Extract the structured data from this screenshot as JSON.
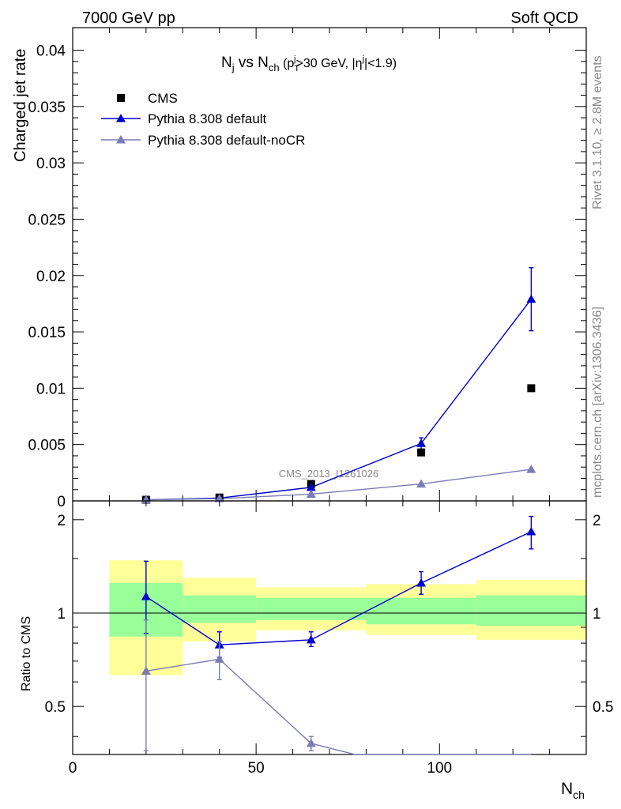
{
  "header": {
    "left": "7000 GeV pp",
    "right": "Soft QCD"
  },
  "side_labels": {
    "rivet": "Rivet 3.1.10, ≥ 2.8M events",
    "mcplots": "mcplots.cern.ch [arXiv:1306.3436]"
  },
  "colors": {
    "cms": "#000000",
    "default": "#0000cc",
    "nocr": "#7b7bb5",
    "band_inner": "#99ff99",
    "band_outer": "#ffff99"
  },
  "chart_data": [
    {
      "type": "scatter",
      "title": {
        "main_a": "N",
        "main_sub_a": "j",
        "vs": " vs N",
        "main_sub_b": "ch",
        "cut_a": " (p",
        "cut_sub": "T",
        "cut_sup": "j",
        "cut_b": ">30 GeV, |η",
        "cut_sup2": "j",
        "cut_c": "|<1.9)"
      },
      "ylabel": "Charged jet rate",
      "watermark": "CMS_2013_I1261026",
      "xlim": [
        0,
        140
      ],
      "ylim": [
        0,
        0.042
      ],
      "yticks": [
        0,
        0.005,
        0.01,
        0.015,
        0.02,
        0.025,
        0.03,
        0.035,
        0.04
      ],
      "ytick_labels": [
        "0",
        "0.005",
        "0.01",
        "0.015",
        "0.02",
        "0.025",
        "0.03",
        "0.035",
        "0.04"
      ],
      "legend": {
        "position": "top-left"
      },
      "series": [
        {
          "name": "CMS",
          "marker": "square",
          "x": [
            20,
            40,
            65,
            95,
            125
          ],
          "y": [
            0.0001,
            0.0003,
            0.0015,
            0.0043,
            0.01
          ]
        },
        {
          "name": "Pythia 8.308 default",
          "marker": "triangle",
          "x": [
            20,
            40,
            65,
            95,
            125
          ],
          "y": [
            0.0001,
            0.00025,
            0.0012,
            0.0051,
            0.0179
          ],
          "yerr": [
            0.0,
            0.0,
            0.0002,
            0.0005,
            0.0028
          ]
        },
        {
          "name": "Pythia 8.308 default-noCR",
          "marker": "triangle",
          "x": [
            20,
            40,
            65,
            95,
            125
          ],
          "y": [
            0.0001,
            0.0002,
            0.0006,
            0.0015,
            0.0028
          ],
          "yerr": [
            0.0,
            0.0,
            0.0,
            0.0,
            0.0
          ]
        }
      ]
    },
    {
      "type": "scatter",
      "ylabel": "Ratio to CMS",
      "xlabel_main": "N",
      "xlabel_sub": "ch",
      "xlim": [
        0,
        140
      ],
      "ylim": [
        0.35,
        2.3
      ],
      "log_y": true,
      "xticks": [
        0,
        50,
        100
      ],
      "xtick_labels": [
        "0",
        "50",
        "100"
      ],
      "yticks": [
        0.5,
        1,
        2
      ],
      "ytick_labels": [
        "0.5",
        "1",
        "2"
      ],
      "bands": [
        {
          "x0": 10,
          "x1": 30,
          "inner": [
            0.84,
            1.25
          ],
          "outer": [
            0.63,
            1.48
          ]
        },
        {
          "x0": 30,
          "x1": 50,
          "inner": [
            0.93,
            1.14
          ],
          "outer": [
            0.81,
            1.3
          ]
        },
        {
          "x0": 50,
          "x1": 80,
          "inner": [
            0.95,
            1.12
          ],
          "outer": [
            0.88,
            1.21
          ]
        },
        {
          "x0": 80,
          "x1": 110,
          "inner": [
            0.92,
            1.12
          ],
          "outer": [
            0.85,
            1.24
          ]
        },
        {
          "x0": 110,
          "x1": 140,
          "inner": [
            0.91,
            1.14
          ],
          "outer": [
            0.82,
            1.28
          ]
        }
      ],
      "series": [
        {
          "name": "Pythia 8.308 default",
          "x": [
            20,
            40,
            65,
            95,
            125
          ],
          "y": [
            1.13,
            0.79,
            0.82,
            1.25,
            1.83
          ],
          "err_lo": [
            0.27,
            0.07,
            0.04,
            0.1,
            0.22
          ],
          "err_hi": [
            0.34,
            0.08,
            0.05,
            0.11,
            0.22
          ]
        },
        {
          "name": "Pythia 8.308 default-noCR",
          "x": [
            20,
            40,
            65,
            77,
            95,
            125
          ],
          "y": [
            0.65,
            0.71,
            0.38,
            0.33,
            0.33,
            0.33
          ],
          "err_lo": [
            0.29,
            0.1,
            0.02,
            0,
            0,
            0
          ],
          "err_hi": [
            0.3,
            0.1,
            0.02,
            0,
            0,
            0
          ]
        }
      ]
    }
  ]
}
